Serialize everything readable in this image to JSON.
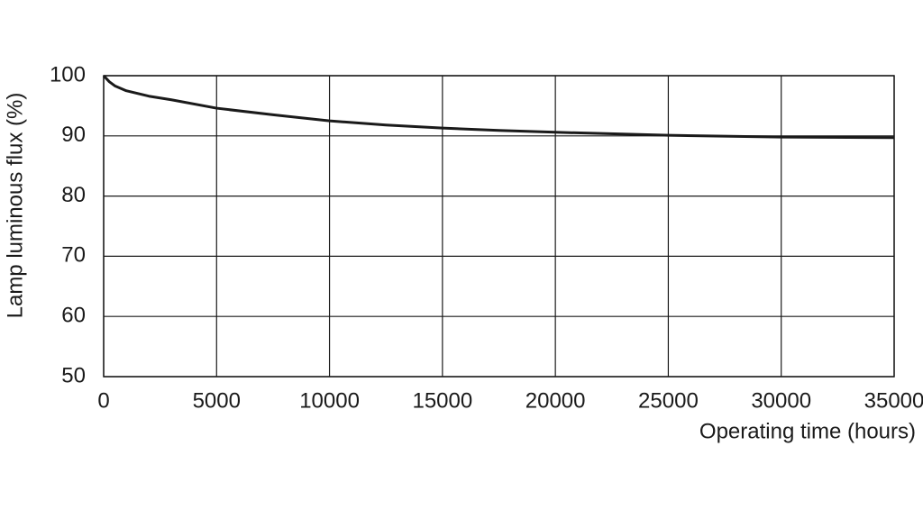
{
  "chart_data": {
    "type": "line",
    "x_label": "Operating time (hours)",
    "y_label": "Lamp luminous flux (%)",
    "x": [
      0,
      250,
      500,
      1000,
      2000,
      3000,
      5000,
      7500,
      10000,
      12500,
      15000,
      17500,
      20000,
      25000,
      30000,
      35000
    ],
    "series": [
      {
        "color": "#1a1a1a",
        "values": [
          100,
          99,
          98.3,
          97.5,
          96.6,
          96,
          94.6,
          93.5,
          92.5,
          91.8,
          91.3,
          90.9,
          90.6,
          90.1,
          89.8,
          89.7
        ]
      }
    ],
    "xlim": [
      0,
      35000
    ],
    "xticks": [
      0,
      5000,
      10000,
      15000,
      20000,
      25000,
      30000,
      35000
    ],
    "ylim": [
      50,
      100
    ],
    "yticks": [
      50,
      60,
      70,
      80,
      90,
      100
    ],
    "grid": true
  }
}
